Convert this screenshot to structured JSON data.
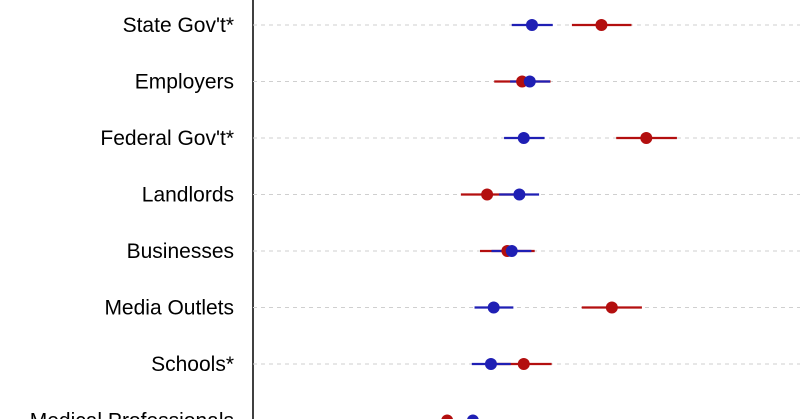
{
  "chart_data": {
    "type": "dot-and-whisker",
    "title": "",
    "xlabel": "",
    "ylabel": "",
    "xlim": [
      0,
      1
    ],
    "grid": "horizontal dashed",
    "categories": [
      "State Gov't*",
      "Employers",
      "Federal Gov't*",
      "Landlords",
      "Businesses",
      "Media Outlets",
      "Schools*",
      "Medical Professionals"
    ],
    "series": [
      {
        "name": "Blue group",
        "color": "#1f1fb4",
        "points": [
          {
            "category": "State Gov't*",
            "estimate": 0.51,
            "low": 0.473,
            "high": 0.548
          },
          {
            "category": "Employers",
            "estimate": 0.506,
            "low": 0.47,
            "high": 0.543
          },
          {
            "category": "Federal Gov't*",
            "estimate": 0.495,
            "low": 0.459,
            "high": 0.533
          },
          {
            "category": "Landlords",
            "estimate": 0.487,
            "low": 0.45,
            "high": 0.523
          },
          {
            "category": "Businesses",
            "estimate": 0.473,
            "low": 0.436,
            "high": 0.509
          },
          {
            "category": "Media Outlets",
            "estimate": 0.44,
            "low": 0.405,
            "high": 0.476
          },
          {
            "category": "Schools*",
            "estimate": 0.435,
            "low": 0.4,
            "high": 0.471
          },
          {
            "category": "Medical Professionals",
            "estimate": 0.402,
            "low": 0.366,
            "high": 0.437
          }
        ]
      },
      {
        "name": "Red group",
        "color": "#b30f0f",
        "points": [
          {
            "category": "State Gov't*",
            "estimate": 0.637,
            "low": 0.583,
            "high": 0.692
          },
          {
            "category": "Employers",
            "estimate": 0.492,
            "low": 0.441,
            "high": 0.544
          },
          {
            "category": "Federal Gov't*",
            "estimate": 0.719,
            "low": 0.664,
            "high": 0.775
          },
          {
            "category": "Landlords",
            "estimate": 0.428,
            "low": 0.38,
            "high": 0.477
          },
          {
            "category": "Businesses",
            "estimate": 0.465,
            "low": 0.415,
            "high": 0.515
          },
          {
            "category": "Media Outlets",
            "estimate": 0.656,
            "low": 0.601,
            "high": 0.711
          },
          {
            "category": "Schools*",
            "estimate": 0.495,
            "low": 0.443,
            "high": 0.546
          },
          {
            "category": "Medical Professionals",
            "estimate": 0.355,
            "low": 0.313,
            "high": 0.397
          }
        ]
      }
    ]
  }
}
